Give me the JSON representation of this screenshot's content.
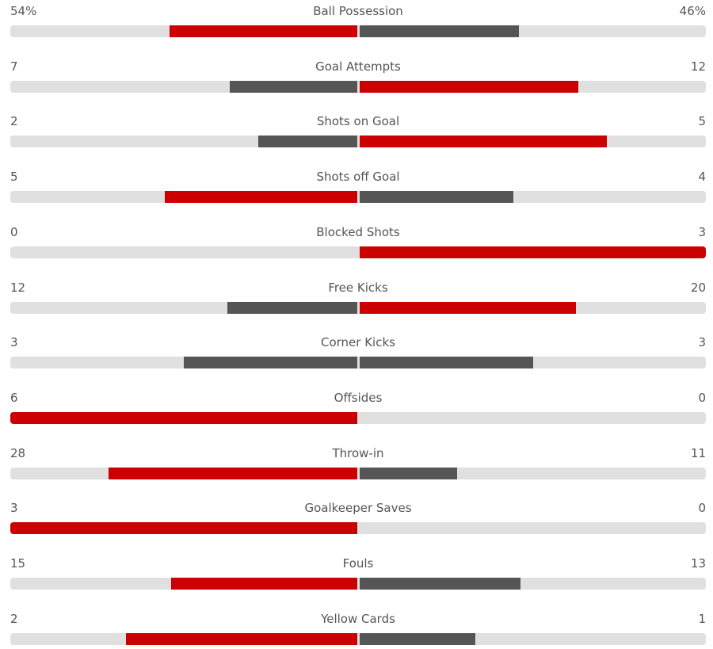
{
  "stats": [
    {
      "label": "Ball Possession",
      "home": "54%",
      "away": "46%"
    },
    {
      "label": "Goal Attempts",
      "home": "7",
      "away": "12"
    },
    {
      "label": "Shots on Goal",
      "home": "2",
      "away": "5"
    },
    {
      "label": "Shots off Goal",
      "home": "5",
      "away": "4"
    },
    {
      "label": "Blocked Shots",
      "home": "0",
      "away": "3"
    },
    {
      "label": "Free Kicks",
      "home": "12",
      "away": "20"
    },
    {
      "label": "Corner Kicks",
      "home": "3",
      "away": "3"
    },
    {
      "label": "Offsides",
      "home": "6",
      "away": "0"
    },
    {
      "label": "Throw-in",
      "home": "28",
      "away": "11"
    },
    {
      "label": "Goalkeeper Saves",
      "home": "3",
      "away": "0"
    },
    {
      "label": "Fouls",
      "home": "15",
      "away": "13"
    },
    {
      "label": "Yellow Cards",
      "home": "2",
      "away": "1"
    }
  ]
}
